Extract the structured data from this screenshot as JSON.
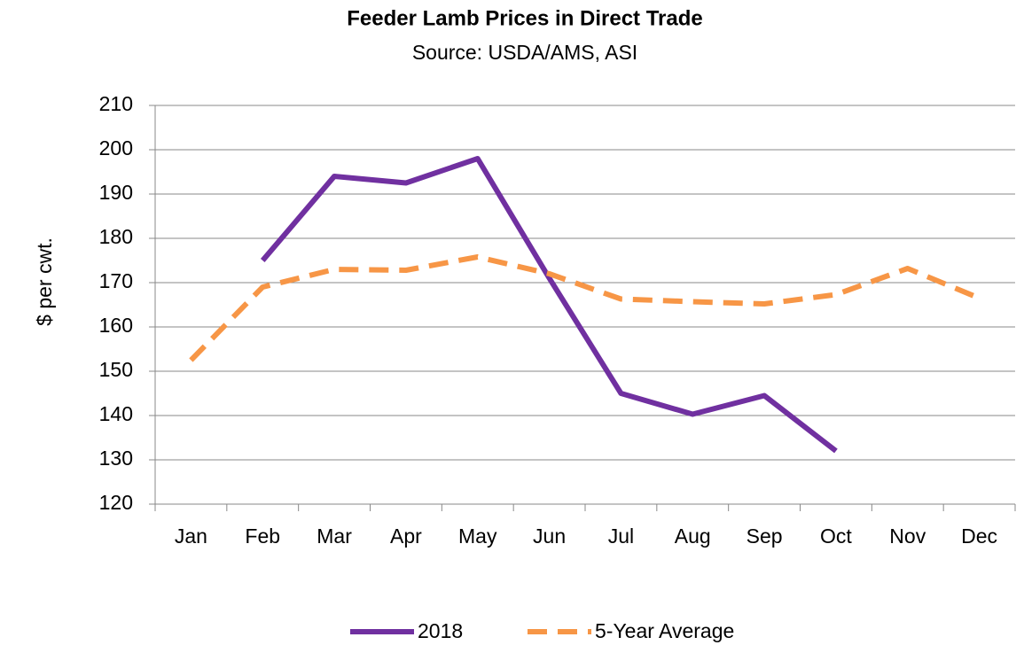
{
  "chart_data": {
    "type": "line",
    "title": "Feeder Lamb Prices in Direct Trade",
    "subtitle": "Source: USDA/AMS, ASI",
    "y_label": "$ per cwt.",
    "categories": [
      "Jan",
      "Feb",
      "Mar",
      "Apr",
      "May",
      "Jun",
      "Jul",
      "Aug",
      "Sep",
      "Oct",
      "Nov",
      "Dec"
    ],
    "series": [
      {
        "name": "2018",
        "color": "#7030a0",
        "dashed": false,
        "values": [
          null,
          175,
          194,
          192.5,
          198,
          171,
          145,
          140.3,
          144.5,
          132,
          null,
          null
        ]
      },
      {
        "name": "5-Year Average",
        "color": "#f79646",
        "dashed": true,
        "values": [
          152.5,
          169,
          173,
          172.8,
          175.8,
          172,
          166.3,
          165.7,
          165.2,
          167.3,
          173.2,
          166.5
        ]
      }
    ],
    "ylim": [
      120,
      210
    ],
    "yticks": [
      120,
      130,
      140,
      150,
      160,
      170,
      180,
      190,
      200,
      210
    ],
    "grid": true,
    "legend": "bottom"
  }
}
